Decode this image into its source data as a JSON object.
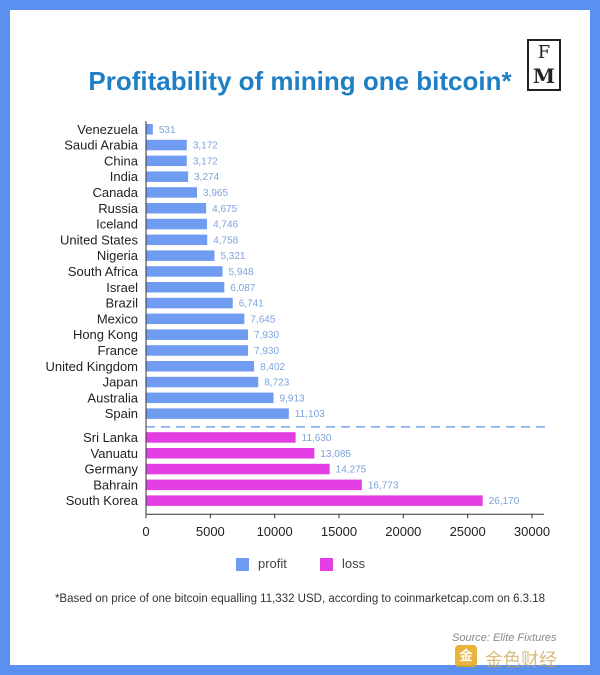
{
  "logo": {
    "line1": "F",
    "line2": "M"
  },
  "title": "Profitability of mining one bitcoin*",
  "colors": {
    "profit": "#6f9bf0",
    "loss": "#e23ee2",
    "label": "#7da3dc",
    "axis": "#333333",
    "divider": "#5b8ff0"
  },
  "legend": {
    "profit_label": "profit",
    "loss_label": "loss"
  },
  "footnote": "*Based on price of one bitcoin equalling 11,332 USD, according to coinmarketcap.com on 6.3.18",
  "source": "Source: Elite Fixtures",
  "watermark": {
    "text": "金色财经",
    "icon": "golden-finance-logo-icon"
  },
  "chart_data": {
    "type": "bar",
    "orientation": "horizontal",
    "title": "Profitability of mining one bitcoin*",
    "xlim": [
      0,
      30000
    ],
    "xticks": [
      0,
      5000,
      10000,
      15000,
      20000,
      25000,
      30000
    ],
    "xtick_labels": [
      "0",
      "5000",
      "10000",
      "15000",
      "20000",
      "25000",
      "30000"
    ],
    "series": [
      {
        "name": "profit",
        "categories": [
          "Venezuela",
          "Saudi Arabia",
          "China",
          "India",
          "Canada",
          "Russia",
          "Iceland",
          "United States",
          "Nigeria",
          "South Africa",
          "Israel",
          "Brazil",
          "Mexico",
          "Hong Kong",
          "France",
          "United Kingdom",
          "Japan",
          "Australia",
          "Spain"
        ],
        "values": [
          531,
          3172,
          3172,
          3274,
          3965,
          4675,
          4746,
          4758,
          5321,
          5948,
          6087,
          6741,
          7645,
          7930,
          7930,
          8402,
          8723,
          9913,
          11103
        ],
        "labels": [
          "531",
          "3,172",
          "3,172",
          "3,274",
          "3,965",
          "4,675",
          "4,746",
          "4,758",
          "5,321",
          "5,948",
          "6,087",
          "6,741",
          "7,645",
          "7,930",
          "7,930",
          "8,402",
          "8,723",
          "9,913",
          "11,103"
        ]
      },
      {
        "name": "loss",
        "categories": [
          "Sri Lanka",
          "Vanuatu",
          "Germany",
          "Bahrain",
          "South Korea"
        ],
        "values": [
          11630,
          13085,
          14275,
          16773,
          26170
        ],
        "labels": [
          "11,630",
          "13,085",
          "14,275",
          "16,773",
          "26,170"
        ]
      }
    ],
    "legend_position": "bottom"
  }
}
